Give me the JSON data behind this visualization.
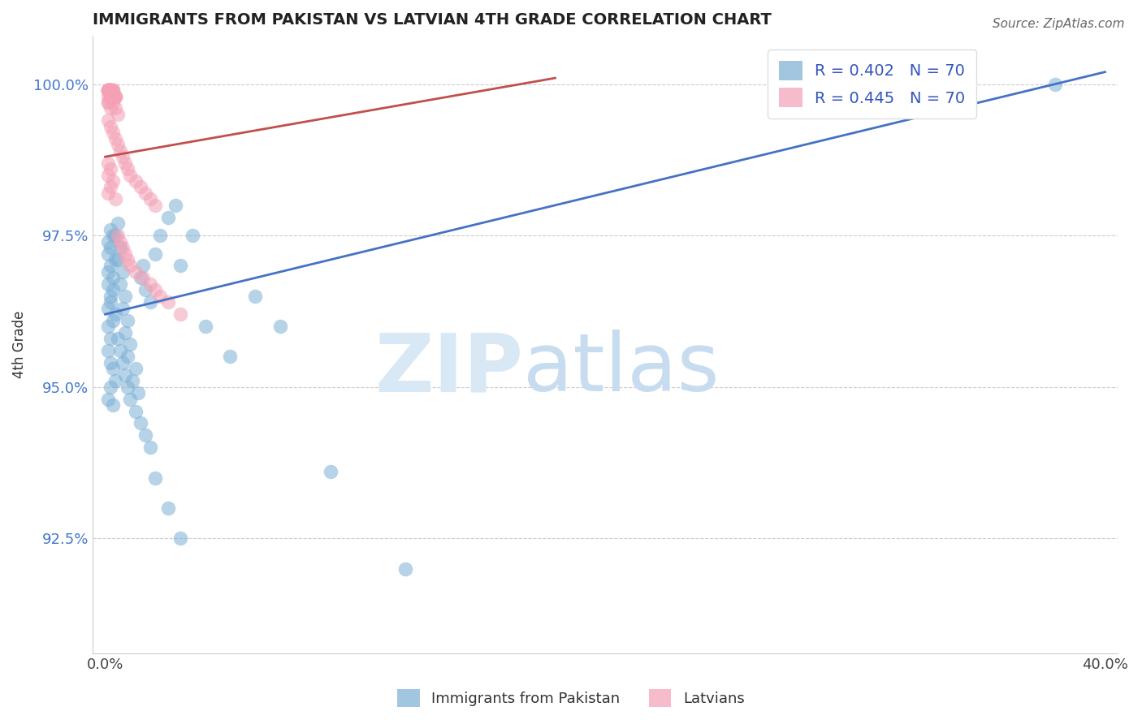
{
  "title": "IMMIGRANTS FROM PAKISTAN VS LATVIAN 4TH GRADE CORRELATION CHART",
  "source": "Source: ZipAtlas.com",
  "xlabel_blue": "Immigrants from Pakistan",
  "xlabel_pink": "Latvians",
  "ylabel": "4th Grade",
  "xlim": [
    -0.005,
    0.405
  ],
  "ylim": [
    0.906,
    1.008
  ],
  "xticks": [
    0.0,
    0.4
  ],
  "xticklabels": [
    "0.0%",
    "40.0%"
  ],
  "yticks": [
    0.925,
    0.95,
    0.975,
    1.0
  ],
  "yticklabels": [
    "92.5%",
    "95.0%",
    "97.5%",
    "100.0%"
  ],
  "R_blue": 0.402,
  "R_pink": 0.445,
  "N_blue": 70,
  "N_pink": 70,
  "blue_color": "#7BAFD4",
  "pink_color": "#F4A0B5",
  "blue_line_color": "#4472C4",
  "pink_line_color": "#C0504D",
  "watermark_zip_color": "#D8E8F5",
  "watermark_atlas_color": "#C8DCF0",
  "blue_scatter_x": [
    0.001,
    0.002,
    0.001,
    0.003,
    0.002,
    0.004,
    0.001,
    0.002,
    0.003,
    0.001,
    0.002,
    0.001,
    0.003,
    0.002,
    0.004,
    0.001,
    0.002,
    0.003,
    0.001,
    0.002,
    0.003,
    0.004,
    0.002,
    0.001,
    0.003,
    0.005,
    0.004,
    0.006,
    0.005,
    0.007,
    0.006,
    0.008,
    0.007,
    0.009,
    0.008,
    0.01,
    0.009,
    0.012,
    0.011,
    0.013,
    0.015,
    0.014,
    0.016,
    0.018,
    0.02,
    0.022,
    0.025,
    0.028,
    0.03,
    0.035,
    0.005,
    0.006,
    0.007,
    0.008,
    0.009,
    0.01,
    0.012,
    0.014,
    0.016,
    0.018,
    0.02,
    0.025,
    0.03,
    0.04,
    0.05,
    0.06,
    0.07,
    0.09,
    0.12,
    0.38
  ],
  "blue_scatter_y": [
    0.974,
    0.976,
    0.972,
    0.975,
    0.973,
    0.971,
    0.969,
    0.97,
    0.968,
    0.967,
    0.965,
    0.963,
    0.966,
    0.964,
    0.962,
    0.96,
    0.958,
    0.961,
    0.956,
    0.954,
    0.953,
    0.951,
    0.95,
    0.948,
    0.947,
    0.977,
    0.975,
    0.973,
    0.971,
    0.969,
    0.967,
    0.965,
    0.963,
    0.961,
    0.959,
    0.957,
    0.955,
    0.953,
    0.951,
    0.949,
    0.97,
    0.968,
    0.966,
    0.964,
    0.972,
    0.975,
    0.978,
    0.98,
    0.97,
    0.975,
    0.958,
    0.956,
    0.954,
    0.952,
    0.95,
    0.948,
    0.946,
    0.944,
    0.942,
    0.94,
    0.935,
    0.93,
    0.925,
    0.96,
    0.955,
    0.965,
    0.96,
    0.936,
    0.92,
    1.0
  ],
  "pink_scatter_x": [
    0.001,
    0.002,
    0.001,
    0.003,
    0.002,
    0.001,
    0.004,
    0.002,
    0.003,
    0.001,
    0.002,
    0.003,
    0.001,
    0.002,
    0.001,
    0.003,
    0.002,
    0.004,
    0.001,
    0.002,
    0.003,
    0.001,
    0.002,
    0.001,
    0.003,
    0.002,
    0.001,
    0.004,
    0.002,
    0.003,
    0.001,
    0.002,
    0.003,
    0.004,
    0.005,
    0.001,
    0.002,
    0.003,
    0.004,
    0.005,
    0.006,
    0.007,
    0.008,
    0.009,
    0.01,
    0.012,
    0.014,
    0.016,
    0.018,
    0.02,
    0.005,
    0.006,
    0.007,
    0.008,
    0.009,
    0.01,
    0.012,
    0.015,
    0.018,
    0.02,
    0.022,
    0.025,
    0.03,
    0.001,
    0.002,
    0.001,
    0.003,
    0.002,
    0.001,
    0.004
  ],
  "pink_scatter_y": [
    0.999,
    0.999,
    0.998,
    0.999,
    0.998,
    0.999,
    0.998,
    0.999,
    0.998,
    0.997,
    0.999,
    0.998,
    0.999,
    0.998,
    0.999,
    0.999,
    0.999,
    0.998,
    0.999,
    0.999,
    0.998,
    0.999,
    0.998,
    0.999,
    0.999,
    0.998,
    0.999,
    0.998,
    0.999,
    0.998,
    0.997,
    0.996,
    0.997,
    0.996,
    0.995,
    0.994,
    0.993,
    0.992,
    0.991,
    0.99,
    0.989,
    0.988,
    0.987,
    0.986,
    0.985,
    0.984,
    0.983,
    0.982,
    0.981,
    0.98,
    0.975,
    0.974,
    0.973,
    0.972,
    0.971,
    0.97,
    0.969,
    0.968,
    0.967,
    0.966,
    0.965,
    0.964,
    0.962,
    0.987,
    0.986,
    0.985,
    0.984,
    0.983,
    0.982,
    0.981
  ],
  "blue_trend_x0": 0.0,
  "blue_trend_y0": 0.962,
  "blue_trend_x1": 0.4,
  "blue_trend_y1": 1.002,
  "pink_trend_x0": 0.0,
  "pink_trend_y0": 0.988,
  "pink_trend_x1": 0.18,
  "pink_trend_y1": 1.001
}
